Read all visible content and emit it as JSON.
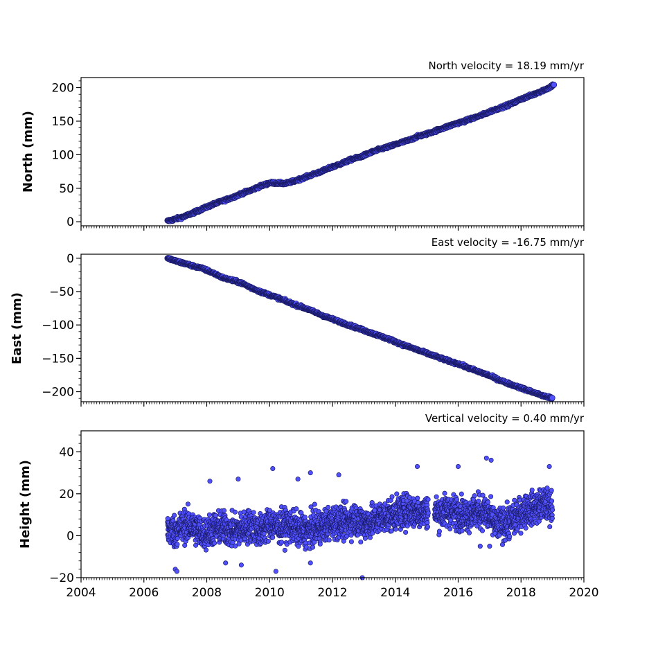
{
  "chart_data": [
    {
      "type": "scatter",
      "title": "North velocity = 18.19 mm/yr",
      "xlabel": "",
      "ylabel": "North (mm)",
      "xlim": [
        2004,
        2020
      ],
      "ylim": [
        -6,
        215
      ],
      "yticks": [
        0,
        50,
        100,
        150,
        200
      ],
      "ytick_labels": [
        "0",
        "50",
        "100",
        "150",
        "200"
      ],
      "xticks": [
        2004,
        2006,
        2008,
        2010,
        2012,
        2014,
        2016,
        2018,
        2020
      ],
      "show_xtick_labels": false,
      "grid": false,
      "marker_color": "#5050ff",
      "marker_edge": "#1a1a66",
      "trend": {
        "start": [
          2006.7,
          0
        ],
        "end": [
          2019.1,
          206
        ]
      },
      "series": [
        {
          "x": [
            2006.75,
            2007.0,
            2007.3,
            2007.6,
            2007.9,
            2008.2,
            2008.5,
            2008.8,
            2009.1,
            2009.4,
            2009.7,
            2010.0,
            2010.2,
            2010.5,
            2010.8,
            2011.1,
            2011.4,
            2011.7,
            2012.0,
            2012.3,
            2012.6,
            2012.9,
            2013.2,
            2013.5,
            2013.8,
            2014.1,
            2014.4,
            2014.7,
            2015.0,
            2015.3,
            2015.6,
            2015.9,
            2016.2,
            2016.5,
            2016.8,
            2017.1,
            2017.4,
            2017.7,
            2018.0,
            2018.3,
            2018.6,
            2018.9,
            2019.05
          ],
          "values": [
            1,
            4,
            8,
            14,
            20,
            26,
            31,
            36,
            42,
            47,
            53,
            58,
            58,
            57,
            61,
            66,
            71,
            76,
            82,
            87,
            93,
            97,
            103,
            108,
            112,
            117,
            121,
            127,
            131,
            136,
            141,
            146,
            150,
            155,
            160,
            166,
            171,
            176,
            183,
            188,
            194,
            200,
            205
          ]
        }
      ]
    },
    {
      "type": "scatter",
      "title": "East velocity = -16.75 mm/yr",
      "xlabel": "",
      "ylabel": "East (mm)",
      "xlim": [
        2004,
        2020
      ],
      "ylim": [
        -215,
        6
      ],
      "yticks": [
        0,
        -50,
        -100,
        -150,
        -200
      ],
      "ytick_labels": [
        "0",
        "−50",
        "−100",
        "−150",
        "−200"
      ],
      "xticks": [
        2004,
        2006,
        2008,
        2010,
        2012,
        2014,
        2016,
        2018,
        2020
      ],
      "show_xtick_labels": false,
      "grid": false,
      "marker_color": "#5050ff",
      "marker_edge": "#1a1a66",
      "trend": {
        "start": [
          2006.7,
          0
        ],
        "end": [
          2019.1,
          -212
        ]
      },
      "series": [
        {
          "x": [
            2006.75,
            2007.0,
            2007.3,
            2007.6,
            2007.9,
            2008.2,
            2008.5,
            2008.8,
            2009.1,
            2009.4,
            2009.7,
            2010.0,
            2010.3,
            2010.6,
            2010.9,
            2011.2,
            2011.5,
            2011.8,
            2012.1,
            2012.4,
            2012.7,
            2013.0,
            2013.3,
            2013.6,
            2013.9,
            2014.2,
            2014.5,
            2014.8,
            2015.1,
            2015.4,
            2015.7,
            2016.0,
            2016.3,
            2016.6,
            2016.9,
            2017.2,
            2017.5,
            2017.8,
            2018.1,
            2018.4,
            2018.7,
            2019.0
          ],
          "values": [
            0,
            -4,
            -8,
            -12,
            -16,
            -22,
            -29,
            -33,
            -37,
            -44,
            -50,
            -55,
            -60,
            -66,
            -71,
            -76,
            -82,
            -88,
            -93,
            -98,
            -103,
            -108,
            -113,
            -118,
            -123,
            -129,
            -134,
            -139,
            -144,
            -149,
            -154,
            -158,
            -164,
            -169,
            -174,
            -180,
            -186,
            -191,
            -196,
            -201,
            -206,
            -210
          ]
        }
      ]
    },
    {
      "type": "scatter",
      "title": "Vertical velocity = 0.40 mm/yr",
      "xlabel": "",
      "ylabel": "Height (mm)",
      "xlim": [
        2004,
        2020
      ],
      "ylim": [
        -20,
        50
      ],
      "yticks": [
        -20,
        0,
        20,
        40
      ],
      "ytick_labels": [
        "−20",
        "0",
        "20",
        "40"
      ],
      "xticks": [
        2004,
        2006,
        2008,
        2010,
        2012,
        2014,
        2016,
        2018,
        2020
      ],
      "xtick_labels": [
        "2004",
        "2006",
        "2008",
        "2010",
        "2012",
        "2014",
        "2016",
        "2018",
        "2020"
      ],
      "show_xtick_labels": true,
      "grid": false,
      "marker_color": "#5050ff",
      "marker_edge": "#1a1a66",
      "gaps": [
        [
          2015.05,
          2015.25
        ]
      ],
      "series": [
        {
          "x": [
            2006.75,
            2007.0,
            2007.3,
            2007.6,
            2007.9,
            2008.2,
            2008.5,
            2008.8,
            2009.1,
            2009.4,
            2009.7,
            2010.0,
            2010.3,
            2010.6,
            2010.9,
            2011.2,
            2011.5,
            2011.8,
            2012.1,
            2012.4,
            2012.7,
            2013.0,
            2013.3,
            2013.6,
            2013.9,
            2014.2,
            2014.5,
            2014.8,
            2015.0,
            2015.4,
            2015.7,
            2016.0,
            2016.3,
            2016.6,
            2016.9,
            2017.2,
            2017.5,
            2017.8,
            2018.1,
            2018.4,
            2018.7,
            2019.0
          ],
          "values": [
            3,
            2,
            5,
            4,
            1,
            3,
            4,
            2,
            3,
            5,
            2,
            6,
            4,
            5,
            3,
            2,
            4,
            5,
            7,
            6,
            8,
            6,
            7,
            9,
            10,
            11,
            12,
            11,
            12,
            11,
            12,
            11,
            10,
            12,
            11,
            5,
            6,
            8,
            12,
            13,
            15,
            14
          ]
        },
        {
          "name": "",
          "x": [
            2007.0,
            2007.05,
            2008.1,
            2009.0,
            2010.1,
            2010.9,
            2011.3,
            2012.2,
            2012.95,
            2014.7,
            2016.0,
            2016.9,
            2017.05,
            2018.9,
            2011.3,
            2008.6,
            2009.1,
            2010.2,
            2012.9,
            2016.7,
            2017.0
          ],
          "values": [
            -16,
            -17,
            26,
            27,
            32,
            27,
            30,
            29,
            -20,
            33,
            33,
            37,
            36,
            33,
            -13,
            -13,
            -14,
            -17,
            -3,
            -5,
            -5
          ]
        }
      ]
    }
  ]
}
